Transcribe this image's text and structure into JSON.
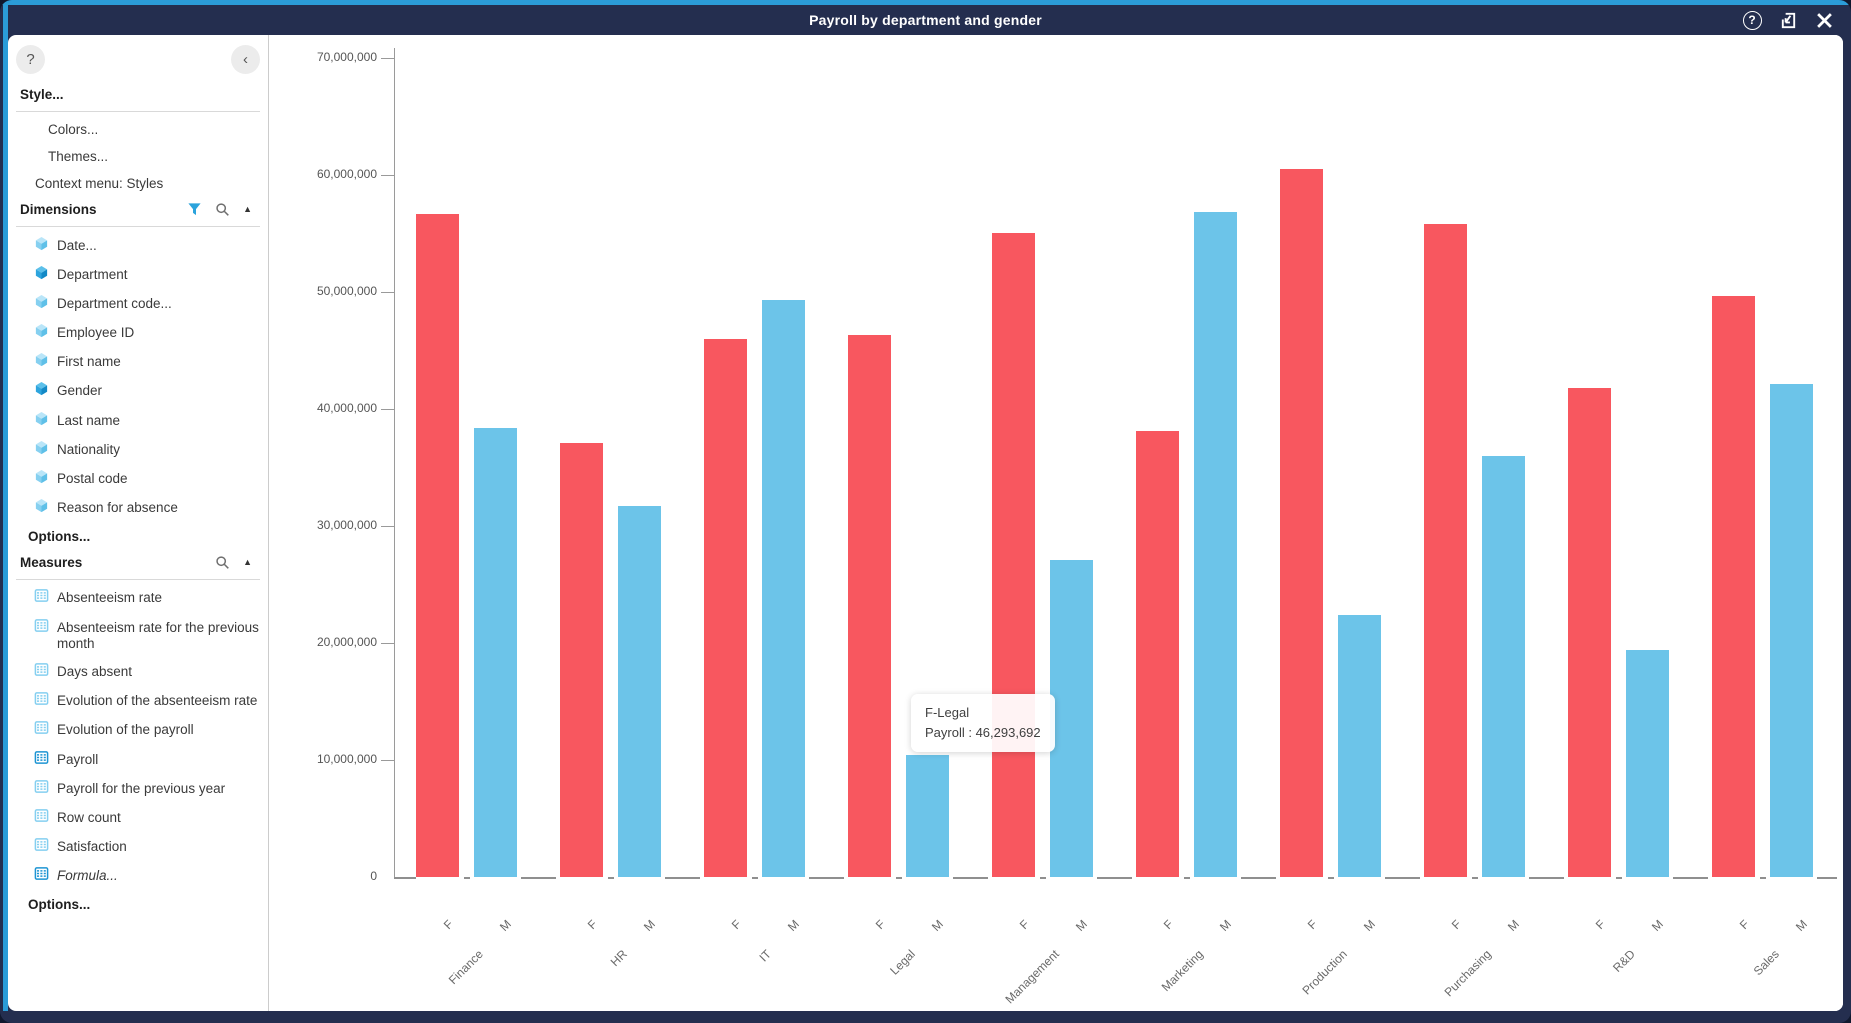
{
  "window": {
    "title": "Payroll by department and gender"
  },
  "sidebar": {
    "help_button": "?",
    "collapse_button": "‹",
    "style_label": "Style...",
    "style_items": [
      "Colors...",
      "Themes...",
      "Context menu: Styles"
    ],
    "dimensions": {
      "label": "Dimensions",
      "items": [
        {
          "label": "Date...",
          "active": false
        },
        {
          "label": "Department",
          "active": true
        },
        {
          "label": "Department code...",
          "active": false
        },
        {
          "label": "Employee ID",
          "active": false
        },
        {
          "label": "First name",
          "active": false
        },
        {
          "label": "Gender",
          "active": true
        },
        {
          "label": "Last name",
          "active": false
        },
        {
          "label": "Nationality",
          "active": false
        },
        {
          "label": "Postal code",
          "active": false
        },
        {
          "label": "Reason for absence",
          "active": false
        }
      ],
      "options_label": "Options..."
    },
    "measures": {
      "label": "Measures",
      "items": [
        {
          "label": "Absenteeism rate",
          "active": false
        },
        {
          "label": "Absenteeism rate for the previous month",
          "active": false
        },
        {
          "label": "Days absent",
          "active": false
        },
        {
          "label": "Evolution of the absenteeism rate",
          "active": false
        },
        {
          "label": "Evolution of the payroll",
          "active": false
        },
        {
          "label": "Payroll",
          "active": true
        },
        {
          "label": "Payroll for the previous year",
          "active": false
        },
        {
          "label": "Row count",
          "active": false
        },
        {
          "label": "Satisfaction",
          "active": false
        },
        {
          "label": "Formula...",
          "active": true,
          "italic": true
        }
      ],
      "options_label": "Options..."
    }
  },
  "tooltip": {
    "line1": "F-Legal",
    "line2": "Payroll : 46,293,692"
  },
  "chart_data": {
    "type": "bar",
    "title": "",
    "xlabel": "",
    "ylabel": "",
    "categories": [
      "Finance",
      "HR",
      "IT",
      "Legal",
      "Management",
      "Marketing",
      "Production",
      "Purchasing",
      "R&D",
      "Sales"
    ],
    "series": [
      {
        "name": "F",
        "color": "#f8575f",
        "values": [
          56700000,
          37100000,
          46000000,
          46293692,
          55000000,
          38100000,
          60500000,
          55800000,
          41800000,
          49700000
        ]
      },
      {
        "name": "M",
        "color": "#6cc4e9",
        "values": [
          38400000,
          31700000,
          49300000,
          10400000,
          27100000,
          56800000,
          22400000,
          36000000,
          19400000,
          42100000
        ]
      }
    ],
    "ylim": [
      0,
      70000000
    ],
    "ytick_step": 10000000,
    "ytick_labels": [
      "0",
      "10,000,000",
      "20,000,000",
      "30,000,000",
      "40,000,000",
      "50,000,000",
      "60,000,000",
      "70,000,000"
    ],
    "grid": false,
    "legend_position": "none",
    "highlighted_point": {
      "series": "F",
      "category": "Legal",
      "value": 46293692
    }
  }
}
